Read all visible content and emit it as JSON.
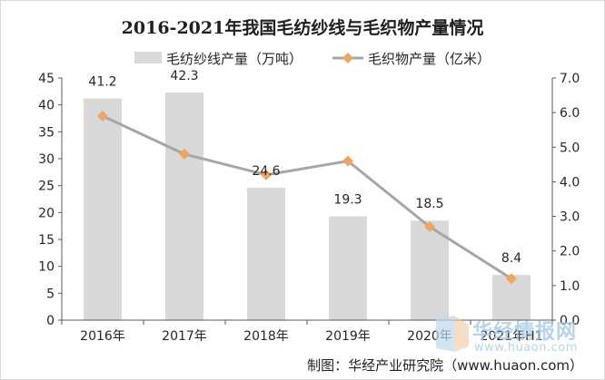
{
  "source_label": "制图：华经产业研究院（www.huaon.com）",
  "watermark": {
    "name": "华经情报网",
    "url": "www.huaon.com"
  },
  "chart_data": {
    "type": "bar",
    "title": "2016-2021年我国毛纺纱线与毛织物产量情况",
    "categories": [
      "2016年",
      "2017年",
      "2018年",
      "2019年",
      "2020年",
      "2021年H1"
    ],
    "series": [
      {
        "name": "毛纺纱线产量（万吨）",
        "type": "bar",
        "axis": "left",
        "values": [
          41.2,
          42.3,
          24.6,
          19.3,
          18.5,
          8.4
        ],
        "color": "#d9d9d9"
      },
      {
        "name": "毛织物产量（亿米）",
        "type": "line",
        "axis": "right",
        "values": [
          5.9,
          4.8,
          4.2,
          4.6,
          2.7,
          1.2
        ],
        "color": "#a6a6a6",
        "marker_color": "#f2a35e"
      }
    ],
    "y_left": {
      "min": 0,
      "max": 45,
      "step": 5,
      "ticks": [
        "0",
        "5",
        "10",
        "15",
        "20",
        "25",
        "30",
        "35",
        "40",
        "45"
      ]
    },
    "y_right": {
      "min": 0,
      "max": 7,
      "step": 1,
      "ticks": [
        "0.0",
        "1.0",
        "2.0",
        "3.0",
        "4.0",
        "5.0",
        "6.0",
        "7.0"
      ]
    },
    "bar_labels": [
      "41.2",
      "42.3",
      "24.6",
      "19.3",
      "18.5",
      "8.4"
    ],
    "legend_position": "top",
    "grid": false
  }
}
